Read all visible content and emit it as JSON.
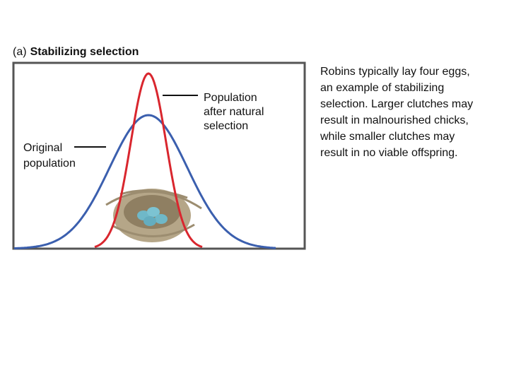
{
  "figure": {
    "panel_letter": "(a)",
    "title": "Stabilizing selection",
    "after_label": [
      "Population",
      "after natural",
      "selection"
    ],
    "original_label": [
      "Original",
      "population"
    ]
  },
  "description": [
    "Robins typically lay four eggs,",
    "an example of stabilizing",
    "selection. Larger clutches may",
    "result in malnourished chicks,",
    "while smaller clutches may",
    "result in no viable offspring."
  ]
}
